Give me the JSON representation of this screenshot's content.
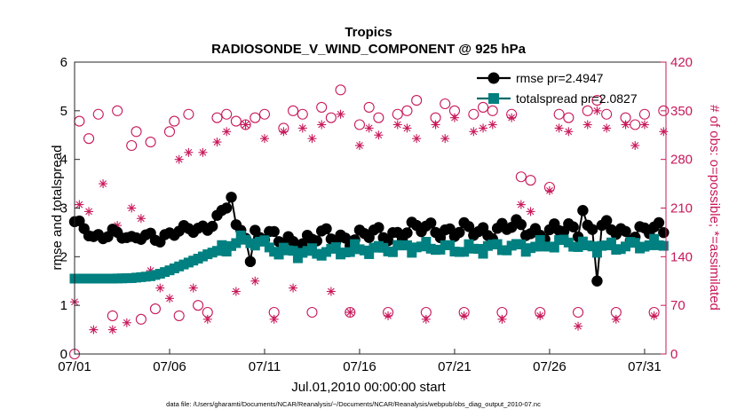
{
  "chart_data": {
    "type": "line",
    "title": "Tropics",
    "subtitle": "RADIOSONDE_V_WIND_COMPONENT @ 925 hPa",
    "xlabel": "Jul.01,2010 00:00:00 start",
    "ylabel": "rmse and totalspread",
    "ylabel_right": "# of obs: o=possible; *=assimilated",
    "footnote": "data file: /Users/gharamti/Documents/NCAR/Reanalysis/~/Documents/NCAR/Reanalysis/webpub/obs_diag_output_2010-07.nc",
    "x_tick_labels": [
      "07/01",
      "07/06",
      "07/11",
      "07/16",
      "07/21",
      "07/26",
      "07/31"
    ],
    "x_tick_days": [
      0,
      5,
      10,
      15,
      20,
      25,
      30
    ],
    "xlim_days": [
      0,
      31.125
    ],
    "ylim": [
      0,
      6
    ],
    "y_ticks": [
      "0",
      "1",
      "2",
      "3",
      "4",
      "5",
      "6"
    ],
    "ylim_right": [
      0,
      420
    ],
    "y_ticks_right": [
      "0",
      "70",
      "140",
      "210",
      "280",
      "350",
      "420"
    ],
    "legend": {
      "position": "top-right",
      "entries": [
        "rmse pr=2.4947",
        "totalspread pr=2.0827"
      ]
    },
    "colors": {
      "rmse": "#000000",
      "spread": "#008080",
      "obs": "#c8185a",
      "spreadLine": "#006a6a"
    },
    "rmse_anchors": [
      [
        0,
        2.72
      ],
      [
        0.5,
        2.55
      ],
      [
        1,
        2.35
      ],
      [
        1.5,
        2.45
      ],
      [
        2,
        2.55
      ],
      [
        2.5,
        2.45
      ],
      [
        3,
        2.3
      ],
      [
        3.5,
        2.4
      ],
      [
        4,
        2.45
      ],
      [
        4.5,
        2.4
      ],
      [
        5,
        2.45
      ],
      [
        5.5,
        2.5
      ],
      [
        6,
        2.55
      ],
      [
        6.5,
        2.6
      ],
      [
        7,
        2.62
      ],
      [
        7.5,
        2.8
      ],
      [
        8,
        2.95
      ],
      [
        8.25,
        3.2
      ],
      [
        8.5,
        2.5
      ],
      [
        9,
        2.55
      ],
      [
        9.5,
        2.5
      ],
      [
        10,
        2.45
      ],
      [
        10.5,
        2.35
      ],
      [
        11,
        2.3
      ],
      [
        12,
        2.35
      ],
      [
        13,
        2.4
      ],
      [
        14,
        2.4
      ],
      [
        15,
        2.42
      ],
      [
        16,
        2.45
      ],
      [
        17,
        2.5
      ],
      [
        18,
        2.55
      ],
      [
        19,
        2.6
      ],
      [
        20,
        2.5
      ],
      [
        21,
        2.52
      ],
      [
        22,
        2.55
      ],
      [
        23,
        2.6
      ],
      [
        24,
        2.55
      ],
      [
        25,
        2.5
      ],
      [
        26,
        2.55
      ],
      [
        27,
        2.6
      ],
      [
        28,
        2.55
      ],
      [
        29,
        2.5
      ],
      [
        30,
        2.55
      ],
      [
        31,
        2.5
      ]
    ],
    "rmse_outliers": [
      [
        27.5,
        1.5
      ],
      [
        9.2,
        1.9
      ],
      [
        7.9,
        3.0
      ],
      [
        26.7,
        2.95
      ]
    ],
    "spread_anchors": [
      [
        0,
        1.55
      ],
      [
        1,
        1.55
      ],
      [
        2,
        1.55
      ],
      [
        3,
        1.56
      ],
      [
        3.5,
        1.58
      ],
      [
        4,
        1.6
      ],
      [
        4.5,
        1.65
      ],
      [
        5,
        1.72
      ],
      [
        5.5,
        1.8
      ],
      [
        6,
        1.88
      ],
      [
        6.5,
        1.96
      ],
      [
        7,
        2.05
      ],
      [
        7.5,
        2.12
      ],
      [
        8,
        2.2
      ],
      [
        8.5,
        2.3
      ],
      [
        9,
        2.35
      ],
      [
        9.5,
        2.3
      ],
      [
        10,
        2.25
      ],
      [
        10.5,
        2.15
      ],
      [
        11,
        2.1
      ],
      [
        12,
        2.08
      ],
      [
        13,
        2.1
      ],
      [
        14,
        2.12
      ],
      [
        15,
        2.15
      ],
      [
        16,
        2.15
      ],
      [
        17,
        2.18
      ],
      [
        18,
        2.2
      ],
      [
        19,
        2.2
      ],
      [
        20,
        2.15
      ],
      [
        21,
        2.15
      ],
      [
        22,
        2.2
      ],
      [
        23,
        2.2
      ],
      [
        24,
        2.2
      ],
      [
        25,
        2.25
      ],
      [
        26,
        2.3
      ],
      [
        27,
        2.2
      ],
      [
        28,
        2.2
      ],
      [
        29,
        2.22
      ],
      [
        30,
        2.25
      ],
      [
        31,
        2.25
      ]
    ],
    "possible_anchors": [
      [
        0,
        0
      ],
      [
        0.25,
        335
      ],
      [
        0.75,
        310
      ],
      [
        1.25,
        345
      ],
      [
        2,
        55
      ],
      [
        2.25,
        350
      ],
      [
        3,
        300
      ],
      [
        3.25,
        320
      ],
      [
        3.5,
        50
      ],
      [
        4,
        305
      ],
      [
        4.25,
        65
      ],
      [
        5,
        320
      ],
      [
        5.25,
        335
      ],
      [
        5.5,
        55
      ],
      [
        6,
        345
      ],
      [
        6.5,
        70
      ],
      [
        7,
        60
      ],
      [
        7.5,
        340
      ],
      [
        8,
        345
      ],
      [
        8.5,
        335
      ],
      [
        9,
        330
      ],
      [
        9.5,
        340
      ],
      [
        10,
        345
      ],
      [
        10.5,
        60
      ],
      [
        11,
        325
      ],
      [
        11.5,
        350
      ],
      [
        12,
        345
      ],
      [
        12.5,
        60
      ],
      [
        13,
        355
      ],
      [
        13.5,
        340
      ],
      [
        14,
        380
      ],
      [
        14.5,
        60
      ],
      [
        15,
        330
      ],
      [
        15.5,
        355
      ],
      [
        16,
        340
      ],
      [
        16.5,
        60
      ],
      [
        17,
        345
      ],
      [
        17.5,
        350
      ],
      [
        18,
        365
      ],
      [
        18.5,
        60
      ],
      [
        19,
        340
      ],
      [
        19.5,
        360
      ],
      [
        20,
        350
      ],
      [
        20.5,
        60
      ],
      [
        21,
        345
      ],
      [
        21.5,
        355
      ],
      [
        22,
        350
      ],
      [
        22.5,
        60
      ],
      [
        23,
        345
      ],
      [
        23.5,
        255
      ],
      [
        24,
        250
      ],
      [
        24.5,
        60
      ],
      [
        25,
        240
      ],
      [
        25.5,
        345
      ],
      [
        26,
        340
      ],
      [
        26.5,
        60
      ],
      [
        27,
        350
      ],
      [
        27.5,
        365
      ],
      [
        28,
        345
      ],
      [
        28.5,
        60
      ],
      [
        29,
        340
      ],
      [
        29.5,
        330
      ],
      [
        30,
        345
      ],
      [
        30.5,
        60
      ],
      [
        31,
        350
      ]
    ],
    "assimilated_anchors": [
      [
        0,
        75
      ],
      [
        0.25,
        215
      ],
      [
        0.75,
        205
      ],
      [
        1,
        35
      ],
      [
        1.5,
        245
      ],
      [
        2,
        35
      ],
      [
        2.25,
        185
      ],
      [
        2.75,
        45
      ],
      [
        3,
        210
      ],
      [
        3.5,
        195
      ],
      [
        4,
        120
      ],
      [
        4.5,
        95
      ],
      [
        5,
        80
      ],
      [
        5.5,
        280
      ],
      [
        6,
        290
      ],
      [
        6.25,
        95
      ],
      [
        6.75,
        290
      ],
      [
        7,
        50
      ],
      [
        7.5,
        305
      ],
      [
        8,
        320
      ],
      [
        8.5,
        90
      ],
      [
        9,
        330
      ],
      [
        9.5,
        105
      ],
      [
        10,
        310
      ],
      [
        10.5,
        50
      ],
      [
        11,
        320
      ],
      [
        11.5,
        95
      ],
      [
        12,
        325
      ],
      [
        12.5,
        310
      ],
      [
        13,
        330
      ],
      [
        13.5,
        90
      ],
      [
        14,
        345
      ],
      [
        14.5,
        60
      ],
      [
        15,
        300
      ],
      [
        15.5,
        325
      ],
      [
        16,
        315
      ],
      [
        16.5,
        55
      ],
      [
        17,
        330
      ],
      [
        17.5,
        325
      ],
      [
        18,
        310
      ],
      [
        18.5,
        50
      ],
      [
        19,
        330
      ],
      [
        19.5,
        310
      ],
      [
        20,
        340
      ],
      [
        20.5,
        55
      ],
      [
        21,
        320
      ],
      [
        21.5,
        325
      ],
      [
        22,
        330
      ],
      [
        22.5,
        50
      ],
      [
        23,
        340
      ],
      [
        23.5,
        215
      ],
      [
        24,
        205
      ],
      [
        24.5,
        55
      ],
      [
        25,
        235
      ],
      [
        25.5,
        325
      ],
      [
        26,
        320
      ],
      [
        26.5,
        40
      ],
      [
        27,
        330
      ],
      [
        27.5,
        350
      ],
      [
        28,
        325
      ],
      [
        28.5,
        50
      ],
      [
        29,
        330
      ],
      [
        29.5,
        300
      ],
      [
        30,
        330
      ],
      [
        30.5,
        55
      ],
      [
        31,
        320
      ]
    ]
  }
}
